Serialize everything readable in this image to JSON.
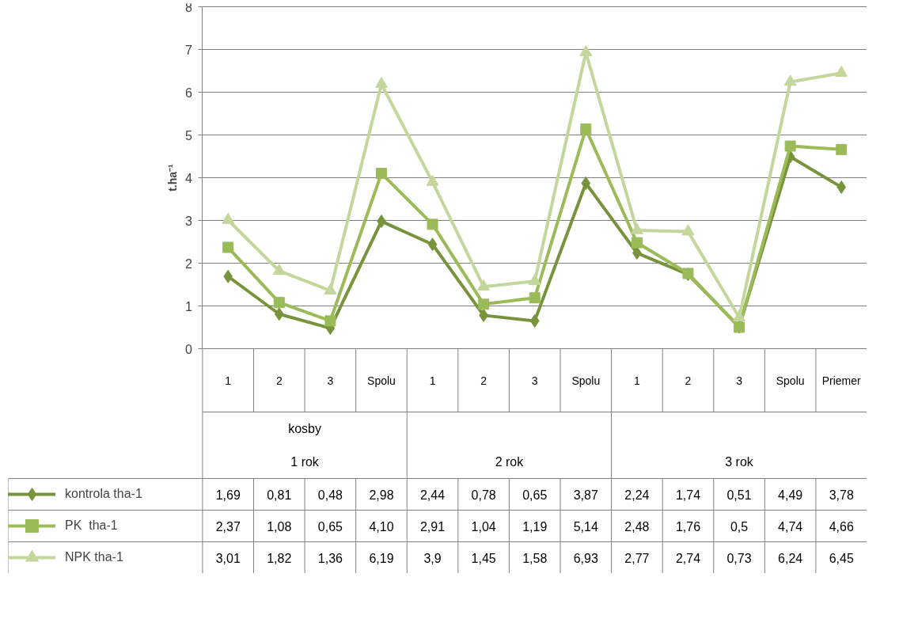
{
  "chart_data": {
    "type": "line",
    "ylabel": "t.ha⁻¹",
    "categories": [
      "1",
      "2",
      "3",
      "Spolu",
      "1",
      "2",
      "3",
      "Spolu",
      "1",
      "2",
      "3",
      "Spolu",
      "Priemer"
    ],
    "annotations": [
      "kosby",
      "1 rok",
      "2 rok",
      "3 rok"
    ],
    "ylim": [
      0,
      8
    ],
    "yticks": [
      0,
      1,
      2,
      3,
      4,
      5,
      6,
      7,
      8
    ],
    "grid": "y",
    "legend": "bottom",
    "series": [
      {
        "name": "kontrola tha-1",
        "color": "#77933c",
        "marker": "diamond",
        "values": [
          1.69,
          0.81,
          0.48,
          2.98,
          2.44,
          0.78,
          0.65,
          3.87,
          2.24,
          1.74,
          0.51,
          4.49,
          3.78
        ],
        "value_labels": [
          "1,69",
          "0,81",
          "0,48",
          "2,98",
          "2,44",
          "0,78",
          "0,65",
          "3,87",
          "2,24",
          "1,74",
          "0,51",
          "4,49",
          "3,78"
        ]
      },
      {
        "name": "PK  tha-1",
        "color": "#9bbb59",
        "marker": "square",
        "values": [
          2.37,
          1.08,
          0.65,
          4.1,
          2.91,
          1.04,
          1.19,
          5.14,
          2.48,
          1.76,
          0.5,
          4.74,
          4.66
        ],
        "value_labels": [
          "2,37",
          "1,08",
          "0,65",
          "4,10",
          "2,91",
          "1,04",
          "1,19",
          "5,14",
          "2,48",
          "1,76",
          "0,5",
          "4,74",
          "4,66"
        ]
      },
      {
        "name": "NPK tha-1",
        "color": "#c3d69b",
        "marker": "triangle",
        "values": [
          3.01,
          1.82,
          1.36,
          6.19,
          3.9,
          1.45,
          1.58,
          6.93,
          2.77,
          2.74,
          0.73,
          6.24,
          6.45
        ],
        "value_labels": [
          "3,01",
          "1,82",
          "1,36",
          "6,19",
          "3,9",
          "1,45",
          "1,58",
          "6,93",
          "2,77",
          "2,74",
          "0,73",
          "6,24",
          "6,45"
        ]
      }
    ]
  }
}
